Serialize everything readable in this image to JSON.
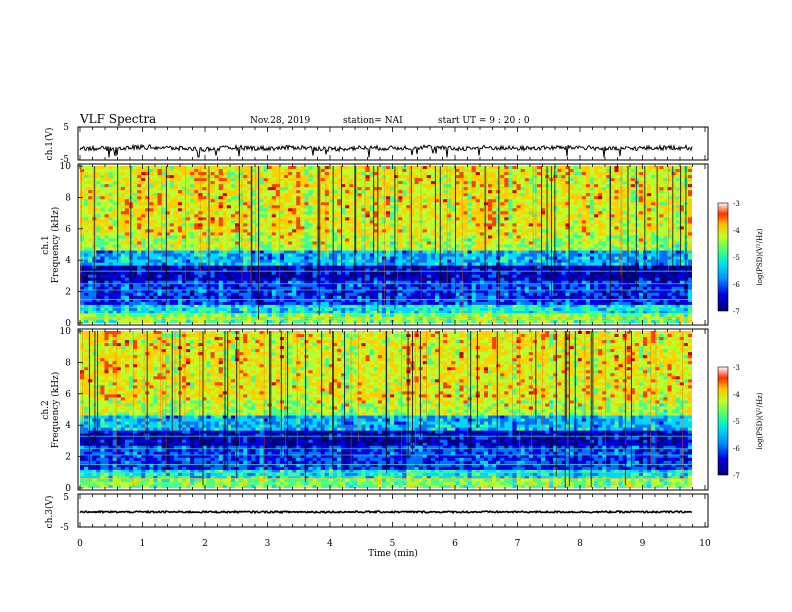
{
  "header": {
    "title": "VLF Spectra",
    "date": "Nov.28, 2019",
    "station": "station= NAI",
    "start": "start  UT  =   9  : 20 : 0"
  },
  "chart_data": [
    {
      "type": "line",
      "panel": "ch1-waveform",
      "ylabel": "ch.1(V)",
      "ylim": [
        -5,
        5
      ],
      "yticks": [
        "5",
        "-5"
      ],
      "xlim": [
        0,
        10
      ],
      "series": [
        {
          "x": [
            0,
            0.5,
            1,
            1.5,
            2,
            2.5,
            3,
            3.5,
            4,
            4.5,
            5,
            5.5,
            6,
            6.5,
            7,
            7.5,
            8,
            8.5,
            9,
            9.5,
            9.8
          ],
          "y": [
            -1.5,
            -1.8,
            -1.2,
            -1.6,
            -2.0,
            -1.4,
            -1.7,
            -1.3,
            -1.9,
            -1.5,
            -1.6,
            -1.2,
            -1.8,
            -1.4,
            -1.7,
            -1.5,
            -1.3,
            -1.9,
            -1.6,
            -1.4,
            -1.5
          ]
        }
      ]
    },
    {
      "type": "heatmap",
      "panel": "ch1-spectrogram",
      "ylabel": "ch.1\nFrequency (kHz)",
      "ylim": [
        0,
        10
      ],
      "yticks": [
        "0",
        "2",
        "4",
        "6",
        "8",
        "10"
      ],
      "xlim": [
        0,
        10
      ],
      "colorbar": {
        "label": "log(PSD)(V²/Hz)",
        "range": [
          -7,
          -3
        ],
        "ticks": [
          "-3",
          "-4",
          "-5",
          "-6",
          "-7"
        ]
      }
    },
    {
      "type": "heatmap",
      "panel": "ch2-spectrogram",
      "ylabel": "ch.2\nFrequency (kHz)",
      "ylim": [
        0,
        10
      ],
      "yticks": [
        "0",
        "2",
        "4",
        "6",
        "8",
        "10"
      ],
      "xlim": [
        0,
        10
      ],
      "colorbar": {
        "label": "log(PSD)(V²/Hz)",
        "range": [
          -7,
          -3
        ],
        "ticks": [
          "-3",
          "-4",
          "-5",
          "-6",
          "-7"
        ]
      }
    },
    {
      "type": "line",
      "panel": "ch3-waveform",
      "ylabel": "ch.3(V)",
      "ylim": [
        -5,
        5
      ],
      "yticks": [
        "5",
        "-5"
      ],
      "xlim": [
        0,
        10
      ],
      "series": [
        {
          "x": [
            0,
            9.8
          ],
          "y": [
            -0.5,
            -0.5
          ]
        }
      ]
    }
  ],
  "xaxis": {
    "label": "Time  (min)",
    "ticks": [
      "0",
      "1",
      "2",
      "3",
      "4",
      "5",
      "6",
      "7",
      "8",
      "9",
      "10"
    ]
  },
  "colors": {
    "colormap": [
      "#00007a",
      "#0000e0",
      "#0070ff",
      "#00d8ff",
      "#40ff90",
      "#b8ff30",
      "#ffd000",
      "#ff4000",
      "#d00000"
    ]
  }
}
